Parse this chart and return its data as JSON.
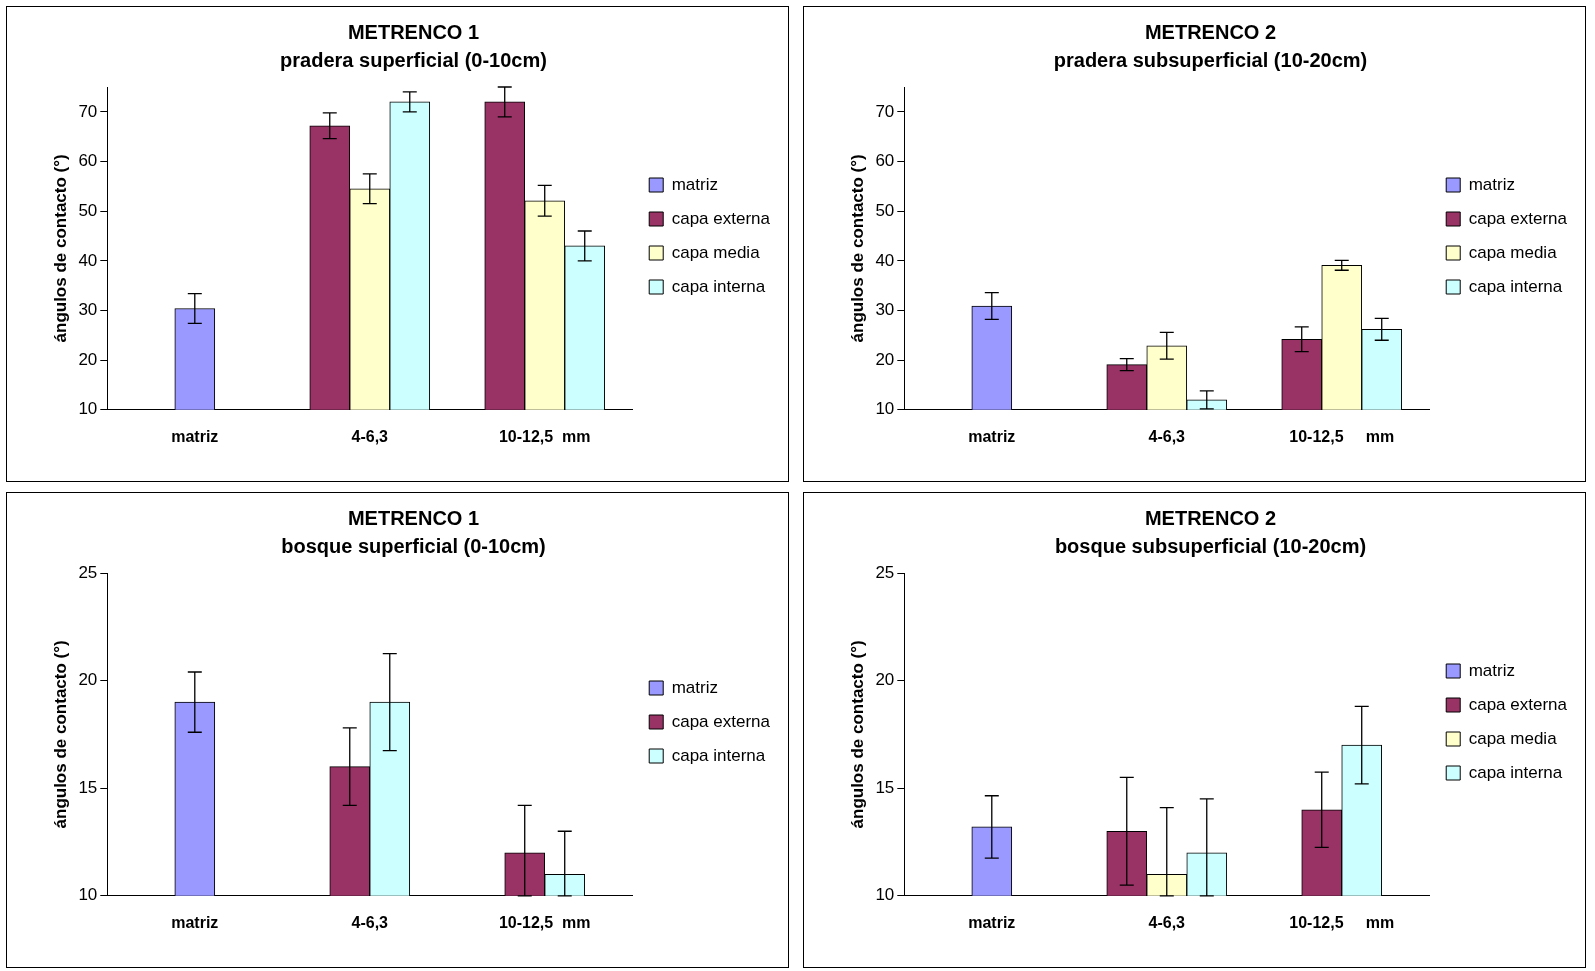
{
  "chart_data": [
    {
      "type": "bar",
      "title": "METRENCO 1",
      "subtitle": "pradera superficial (0-10cm)",
      "ylabel": "ángulos de contacto (°)",
      "categories": [
        "matriz",
        "4-6,3",
        "10-12,5  mm"
      ],
      "ylim": [
        10,
        75
      ],
      "yticks": [
        10,
        20,
        30,
        40,
        50,
        60,
        70
      ],
      "grid": false,
      "legend": "right",
      "series": [
        {
          "name": "matriz",
          "color": "#9999ff",
          "values": [
            30.4,
            null,
            null
          ],
          "errors": [
            3,
            null,
            null
          ]
        },
        {
          "name": "capa externa",
          "color": "#993366",
          "values": [
            null,
            67.2,
            72
          ],
          "errors": [
            null,
            2.6,
            3
          ]
        },
        {
          "name": "capa media",
          "color": "#ffffcc",
          "values": [
            null,
            54.5,
            52.1
          ],
          "errors": [
            null,
            3,
            3.1
          ]
        },
        {
          "name": "capa interna",
          "color": "#ccffff",
          "values": [
            null,
            72,
            43
          ],
          "errors": [
            null,
            2,
            3
          ]
        }
      ]
    },
    {
      "type": "bar",
      "title": "METRENCO 2",
      "subtitle": "pradera subsuperficial (10-20cm)",
      "ylabel": "ángulos de contacto (°)",
      "categories": [
        "matriz",
        "4-6,3",
        "10-12,5     mm"
      ],
      "ylim": [
        10,
        75
      ],
      "yticks": [
        10,
        20,
        30,
        40,
        50,
        60,
        70
      ],
      "grid": false,
      "legend": "right",
      "series": [
        {
          "name": "matriz",
          "color": "#9999ff",
          "values": [
            30.9,
            null,
            null
          ],
          "errors": [
            2.7,
            null,
            null
          ]
        },
        {
          "name": "capa externa",
          "color": "#993366",
          "values": [
            null,
            19.1,
            24.2
          ],
          "errors": [
            null,
            1.2,
            2.5
          ]
        },
        {
          "name": "capa media",
          "color": "#ffffcc",
          "values": [
            null,
            22.9,
            39.1
          ],
          "errors": [
            null,
            2.7,
            1
          ]
        },
        {
          "name": "capa interna",
          "color": "#ccffff",
          "values": [
            null,
            12,
            26.2
          ],
          "errors": [
            null,
            1.8,
            2.2
          ]
        }
      ]
    },
    {
      "type": "bar",
      "title": "METRENCO 1",
      "subtitle": "bosque superficial (0-10cm)",
      "ylabel": "ángulos de contacto (°)",
      "categories": [
        "matriz",
        "4-6,3",
        "10-12,5  mm"
      ],
      "ylim": [
        10,
        25
      ],
      "yticks": [
        10,
        15,
        20,
        25
      ],
      "grid": false,
      "legend": "right",
      "series": [
        {
          "name": "matriz",
          "color": "#9999ff",
          "values": [
            19,
            null,
            null
          ],
          "errors": [
            1.4,
            null,
            null
          ]
        },
        {
          "name": "capa externa",
          "color": "#993366",
          "values": [
            null,
            16,
            12
          ],
          "errors": [
            null,
            1.8,
            [
              10,
              14.2
            ]
          ]
        },
        {
          "name": "capa interna",
          "color": "#ccffff",
          "values": [
            null,
            19,
            11
          ],
          "errors": [
            null,
            2.25,
            [
              10,
              13
            ]
          ]
        }
      ]
    },
    {
      "type": "bar",
      "title": "METRENCO 2",
      "subtitle": "bosque subsuperficial (10-20cm)",
      "ylabel": "ángulos de contacto (°)",
      "categories": [
        "matriz",
        "4-6,3",
        "10-12,5     mm"
      ],
      "ylim": [
        10,
        25
      ],
      "yticks": [
        10,
        15,
        20,
        25
      ],
      "grid": false,
      "legend": "right",
      "series": [
        {
          "name": "matriz",
          "color": "#9999ff",
          "values": [
            13.2,
            null,
            null
          ],
          "errors": [
            1.45,
            null,
            null
          ]
        },
        {
          "name": "capa externa",
          "color": "#993366",
          "values": [
            null,
            13,
            14
          ],
          "errors": [
            null,
            2.5,
            1.75
          ]
        },
        {
          "name": "capa media",
          "color": "#ffffcc",
          "values": [
            null,
            11,
            null
          ],
          "errors": [
            null,
            [
              10,
              14.1
            ],
            null
          ]
        },
        {
          "name": "capa interna",
          "color": "#ccffff",
          "values": [
            null,
            12,
            17
          ],
          "errors": [
            null,
            [
              10,
              14.5
            ],
            1.8
          ]
        }
      ]
    }
  ]
}
